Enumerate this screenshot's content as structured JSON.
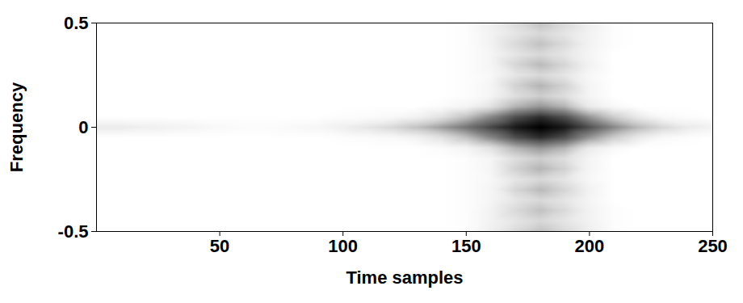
{
  "chart_data": {
    "type": "heatmap",
    "xlabel": "Time samples",
    "ylabel": "Frequency",
    "xlim": [
      0,
      250
    ],
    "ylim": [
      -0.5,
      0.5
    ],
    "xticks": [
      50,
      100,
      150,
      200,
      250
    ],
    "yticks": [
      -0.5,
      0,
      0.5
    ],
    "zlim": [
      0,
      1
    ],
    "x": [
      0,
      10,
      20,
      30,
      40,
      50,
      60,
      70,
      80,
      90,
      100,
      110,
      120,
      130,
      140,
      150,
      160,
      170,
      180,
      190,
      200,
      210,
      220,
      230,
      240,
      250
    ],
    "y": [
      -0.5,
      -0.45,
      -0.4,
      -0.35,
      -0.3,
      -0.25,
      -0.2,
      -0.15,
      -0.1,
      -0.05,
      0,
      0.05,
      0.1,
      0.15,
      0.2,
      0.25,
      0.3,
      0.35,
      0.4,
      0.45,
      0.5
    ],
    "z": [
      [
        0,
        0,
        0,
        0,
        0,
        0,
        0,
        0,
        0,
        0,
        0,
        0,
        0,
        0,
        0,
        0.02,
        0.12,
        0.24,
        0.35,
        0.24,
        0.12,
        0.02,
        0,
        0,
        0,
        0
      ],
      [
        0,
        0,
        0,
        0,
        0,
        0,
        0,
        0,
        0,
        0,
        0,
        0,
        0,
        0,
        0,
        0.02,
        0.1,
        0.18,
        0.25,
        0.18,
        0.1,
        0.02,
        0,
        0,
        0,
        0
      ],
      [
        0,
        0,
        0,
        0,
        0,
        0,
        0,
        0,
        0,
        0,
        0,
        0,
        0,
        0,
        0,
        0.02,
        0.1,
        0.24,
        0.35,
        0.24,
        0.1,
        0.02,
        0,
        0,
        0,
        0
      ],
      [
        0,
        0,
        0,
        0,
        0,
        0,
        0,
        0,
        0,
        0,
        0,
        0,
        0,
        0,
        0,
        0.02,
        0.08,
        0.18,
        0.25,
        0.18,
        0.08,
        0,
        0,
        0,
        0,
        0
      ],
      [
        0,
        0,
        0,
        0,
        0,
        0,
        0,
        0,
        0,
        0,
        0,
        0,
        0,
        0,
        0,
        0.02,
        0.08,
        0.26,
        0.38,
        0.26,
        0.1,
        0,
        0,
        0,
        0,
        0
      ],
      [
        0,
        0,
        0,
        0,
        0,
        0,
        0,
        0,
        0,
        0,
        0,
        0,
        0,
        0,
        0,
        0.02,
        0.06,
        0.18,
        0.25,
        0.18,
        0.06,
        0,
        0,
        0,
        0,
        0
      ],
      [
        0,
        0,
        0,
        0,
        0,
        0,
        0,
        0,
        0,
        0,
        0,
        0,
        0,
        0,
        0,
        0.02,
        0.08,
        0.28,
        0.4,
        0.28,
        0.08,
        0,
        0,
        0,
        0,
        0
      ],
      [
        0,
        0,
        0,
        0,
        0,
        0,
        0,
        0,
        0,
        0,
        0,
        0,
        0,
        0,
        0,
        0.02,
        0.08,
        0.22,
        0.3,
        0.22,
        0.08,
        0,
        0,
        0,
        0,
        0
      ],
      [
        0,
        0,
        0,
        0,
        0,
        0,
        0,
        0,
        0,
        0,
        0,
        0,
        0,
        0,
        0.03,
        0.08,
        0.2,
        0.4,
        0.5,
        0.4,
        0.15,
        0.05,
        0,
        0,
        0,
        0
      ],
      [
        0,
        0,
        0,
        0,
        0,
        0,
        0,
        0,
        0,
        0,
        0.02,
        0.03,
        0.05,
        0.1,
        0.2,
        0.35,
        0.55,
        0.75,
        0.85,
        0.75,
        0.5,
        0.3,
        0.15,
        0.05,
        0.02,
        0
      ],
      [
        0.15,
        0.15,
        0.12,
        0.1,
        0.08,
        0.05,
        0.03,
        0.03,
        0.05,
        0.07,
        0.12,
        0.18,
        0.25,
        0.35,
        0.48,
        0.62,
        0.78,
        0.92,
        1.0,
        0.92,
        0.75,
        0.55,
        0.38,
        0.25,
        0.15,
        0.1
      ],
      [
        0,
        0,
        0,
        0,
        0,
        0,
        0,
        0,
        0,
        0,
        0.02,
        0.03,
        0.05,
        0.1,
        0.2,
        0.35,
        0.55,
        0.75,
        0.85,
        0.75,
        0.5,
        0.3,
        0.15,
        0.05,
        0.02,
        0
      ],
      [
        0,
        0,
        0,
        0,
        0,
        0,
        0,
        0,
        0,
        0,
        0,
        0,
        0,
        0,
        0.03,
        0.08,
        0.2,
        0.4,
        0.5,
        0.4,
        0.15,
        0.05,
        0,
        0,
        0,
        0
      ],
      [
        0,
        0,
        0,
        0,
        0,
        0,
        0,
        0,
        0,
        0,
        0,
        0,
        0,
        0,
        0,
        0.02,
        0.08,
        0.22,
        0.3,
        0.22,
        0.08,
        0,
        0,
        0,
        0,
        0
      ],
      [
        0,
        0,
        0,
        0,
        0,
        0,
        0,
        0,
        0,
        0,
        0,
        0,
        0,
        0,
        0,
        0.02,
        0.08,
        0.28,
        0.4,
        0.28,
        0.08,
        0,
        0,
        0,
        0,
        0
      ],
      [
        0,
        0,
        0,
        0,
        0,
        0,
        0,
        0,
        0,
        0,
        0,
        0,
        0,
        0,
        0,
        0.02,
        0.06,
        0.18,
        0.25,
        0.18,
        0.06,
        0,
        0,
        0,
        0,
        0
      ],
      [
        0,
        0,
        0,
        0,
        0,
        0,
        0,
        0,
        0,
        0,
        0,
        0,
        0,
        0,
        0,
        0.02,
        0.08,
        0.26,
        0.38,
        0.26,
        0.1,
        0,
        0,
        0,
        0,
        0
      ],
      [
        0,
        0,
        0,
        0,
        0,
        0,
        0,
        0,
        0,
        0,
        0,
        0,
        0,
        0,
        0,
        0.02,
        0.08,
        0.18,
        0.25,
        0.18,
        0.08,
        0,
        0,
        0,
        0,
        0
      ],
      [
        0,
        0,
        0,
        0,
        0,
        0,
        0,
        0,
        0,
        0,
        0,
        0,
        0,
        0,
        0,
        0.02,
        0.1,
        0.24,
        0.35,
        0.24,
        0.1,
        0.02,
        0,
        0,
        0,
        0
      ],
      [
        0,
        0,
        0,
        0,
        0,
        0,
        0,
        0,
        0,
        0,
        0,
        0,
        0,
        0,
        0,
        0.02,
        0.1,
        0.18,
        0.25,
        0.18,
        0.1,
        0.02,
        0,
        0,
        0,
        0
      ],
      [
        0,
        0,
        0,
        0,
        0,
        0,
        0,
        0,
        0,
        0,
        0,
        0,
        0,
        0,
        0,
        0.02,
        0.12,
        0.24,
        0.35,
        0.24,
        0.12,
        0.02,
        0,
        0,
        0,
        0
      ]
    ]
  }
}
